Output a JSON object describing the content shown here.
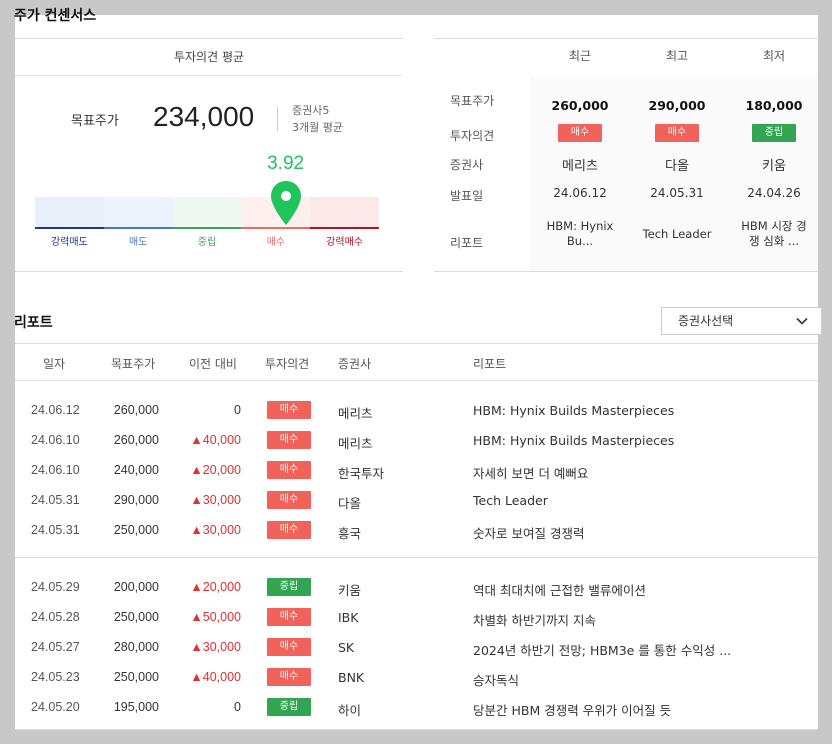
{
  "consensus": {
    "title": "주가 컨센서스",
    "avg_header": "투자의견 평균",
    "target_price_label": "목표주가",
    "target_price": "234,000",
    "brokers_count": "증권사5",
    "period": "3개월 평균",
    "score": "3.92",
    "score_fraction": 0.73,
    "scale_labels": [
      "강력매도",
      "매도",
      "중립",
      "매수",
      "강력매수"
    ],
    "scale_colors": [
      "#1e3a8a",
      "#4a76c9",
      "#3aa55a",
      "#ee6a62",
      "#b3122a"
    ],
    "scale_bg": [
      "#eaf0f9",
      "#edf3fc",
      "#eff9f2",
      "#fdf0ef",
      "#fbe8e9"
    ]
  },
  "summary": {
    "headers": [
      "최근",
      "최고",
      "최저"
    ],
    "row_labels": [
      "목표주가",
      "투자의견",
      "증권사",
      "발표일",
      "리포트"
    ],
    "columns": [
      {
        "price": "260,000",
        "opinion": "매수",
        "opinion_type": "buy",
        "broker": "메리츠",
        "date": "24.06.12",
        "report_line1": "HBM: Hynix",
        "report_line2": "Bu..."
      },
      {
        "price": "290,000",
        "opinion": "매수",
        "opinion_type": "buy",
        "broker": "다올",
        "date": "24.05.31",
        "report_line1": "Tech Leader",
        "report_line2": ""
      },
      {
        "price": "180,000",
        "opinion": "중립",
        "opinion_type": "hold",
        "broker": "키움",
        "date": "24.04.26",
        "report_line1": "HBM 시장 경",
        "report_line2": "쟁 심화 ..."
      }
    ]
  },
  "reports": {
    "title": "리포트",
    "select_label": "증권사선택",
    "headers": [
      "일자",
      "목표주가",
      "이전 대비",
      "투자의견",
      "증권사",
      "리포트"
    ],
    "rows": [
      {
        "date": "24.06.12",
        "price": "260,000",
        "diff": "0",
        "dir": "flat",
        "opinion": "매수",
        "opinion_type": "buy",
        "broker": "메리츠",
        "report": "HBM: Hynix Builds Masterpieces"
      },
      {
        "date": "24.06.10",
        "price": "260,000",
        "diff": "▲40,000",
        "dir": "up",
        "opinion": "매수",
        "opinion_type": "buy",
        "broker": "메리츠",
        "report": "HBM: Hynix Builds Masterpieces"
      },
      {
        "date": "24.06.10",
        "price": "240,000",
        "diff": "▲20,000",
        "dir": "up",
        "opinion": "매수",
        "opinion_type": "buy",
        "broker": "한국투자",
        "report": "자세히 보면 더 예뻐요"
      },
      {
        "date": "24.05.31",
        "price": "290,000",
        "diff": "▲30,000",
        "dir": "up",
        "opinion": "매수",
        "opinion_type": "buy",
        "broker": "다올",
        "report": "Tech Leader"
      },
      {
        "date": "24.05.31",
        "price": "250,000",
        "diff": "▲30,000",
        "dir": "up",
        "opinion": "매수",
        "opinion_type": "buy",
        "broker": "흥국",
        "report": "숫자로 보여질 경쟁력"
      },
      {
        "date": "24.05.29",
        "price": "200,000",
        "diff": "▲20,000",
        "dir": "up",
        "opinion": "중립",
        "opinion_type": "hold",
        "broker": "키움",
        "report": "역대 최대치에 근접한 밸류에이션"
      },
      {
        "date": "24.05.28",
        "price": "250,000",
        "diff": "▲50,000",
        "dir": "up",
        "opinion": "매수",
        "opinion_type": "buy",
        "broker": "IBK",
        "report": "차별화 하반기까지 지속"
      },
      {
        "date": "24.05.27",
        "price": "280,000",
        "diff": "▲30,000",
        "dir": "up",
        "opinion": "매수",
        "opinion_type": "buy",
        "broker": "SK",
        "report": "2024년 하반기 전망; HBM3e 를 통한 수익성 ..."
      },
      {
        "date": "24.05.23",
        "price": "250,000",
        "diff": "▲40,000",
        "dir": "up",
        "opinion": "매수",
        "opinion_type": "buy",
        "broker": "BNK",
        "report": "승자독식"
      },
      {
        "date": "24.05.20",
        "price": "195,000",
        "diff": "0",
        "dir": "flat",
        "opinion": "중립",
        "opinion_type": "hold",
        "broker": "하이",
        "report": "당분간 HBM 경쟁력 우위가 이어질 듯"
      }
    ]
  }
}
